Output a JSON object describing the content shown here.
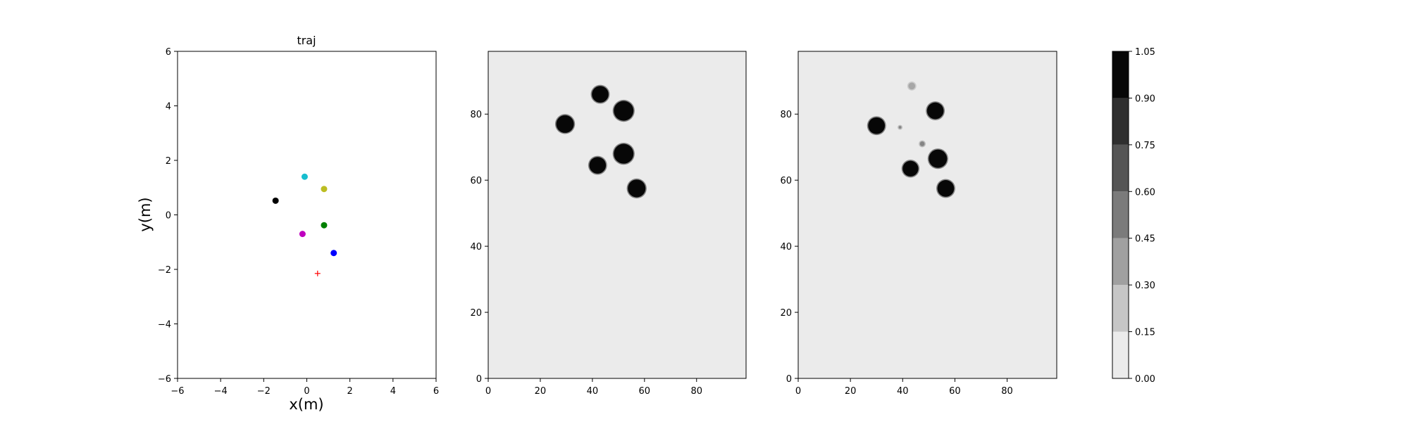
{
  "chart_data": [
    {
      "type": "scatter",
      "title": "traj",
      "xlabel": "x(m)",
      "ylabel": "y(m)",
      "xlim": [
        -6,
        6
      ],
      "ylim": [
        -6,
        6
      ],
      "xticks": [
        -6,
        -4,
        -2,
        0,
        2,
        4,
        6
      ],
      "yticks": [
        -6,
        -4,
        -2,
        0,
        2,
        4,
        6
      ],
      "grid": false,
      "points": [
        {
          "x": -0.1,
          "y": 1.4,
          "color": "#17becf",
          "marker": "dot"
        },
        {
          "x": 0.8,
          "y": 0.95,
          "color": "#bcbd22",
          "marker": "dot"
        },
        {
          "x": -1.45,
          "y": 0.52,
          "color": "#000000",
          "marker": "dot"
        },
        {
          "x": 0.8,
          "y": -0.38,
          "color": "#008000",
          "marker": "dot"
        },
        {
          "x": -0.2,
          "y": -0.7,
          "color": "#bf00bf",
          "marker": "dot"
        },
        {
          "x": 1.25,
          "y": -1.4,
          "color": "#0000ff",
          "marker": "dot"
        },
        {
          "x": 0.5,
          "y": -2.15,
          "color": "#ff0000",
          "marker": "plus"
        }
      ]
    },
    {
      "type": "heatmap",
      "xlim": [
        0,
        99
      ],
      "ylim": [
        0,
        99
      ],
      "xticks": [
        0,
        20,
        40,
        60,
        80
      ],
      "yticks": [
        0,
        20,
        40,
        60,
        80
      ],
      "background_level": 0.08,
      "blobs": [
        {
          "x": 43,
          "y": 86,
          "r": 3.2,
          "level": 1.0
        },
        {
          "x": 52,
          "y": 81,
          "r": 3.8,
          "level": 1.0
        },
        {
          "x": 29.5,
          "y": 77,
          "r": 3.4,
          "level": 1.0
        },
        {
          "x": 52,
          "y": 68,
          "r": 3.8,
          "level": 1.0
        },
        {
          "x": 42,
          "y": 64.5,
          "r": 3.2,
          "level": 1.0
        },
        {
          "x": 57,
          "y": 57.5,
          "r": 3.4,
          "level": 1.0
        }
      ]
    },
    {
      "type": "heatmap",
      "xlim": [
        0,
        99
      ],
      "ylim": [
        0,
        99
      ],
      "xticks": [
        0,
        20,
        40,
        60,
        80
      ],
      "yticks": [
        0,
        20,
        40,
        60,
        80
      ],
      "background_level": 0.08,
      "blobs": [
        {
          "x": 43.5,
          "y": 88.5,
          "r": 1.3,
          "level": 0.3
        },
        {
          "x": 52.5,
          "y": 81,
          "r": 3.2,
          "level": 1.0
        },
        {
          "x": 30,
          "y": 76.5,
          "r": 3.2,
          "level": 1.0
        },
        {
          "x": 47.5,
          "y": 71,
          "r": 0.9,
          "level": 0.45
        },
        {
          "x": 53.5,
          "y": 66.5,
          "r": 3.5,
          "level": 1.0
        },
        {
          "x": 43,
          "y": 63.5,
          "r": 3.0,
          "level": 1.0
        },
        {
          "x": 56.5,
          "y": 57.5,
          "r": 3.2,
          "level": 1.0
        },
        {
          "x": 39,
          "y": 76,
          "r": 0.5,
          "level": 0.45
        }
      ]
    }
  ],
  "colorbar": {
    "levels": [
      0.0,
      0.15,
      0.3,
      0.45,
      0.6,
      0.75,
      0.9,
      1.05
    ],
    "tick_labels": [
      "0.00",
      "0.15",
      "0.30",
      "0.45",
      "0.60",
      "0.75",
      "0.90",
      "1.05"
    ],
    "colors": [
      "#ebebeb",
      "#c6c6c6",
      "#a0a0a0",
      "#7b7b7b",
      "#555555",
      "#2f2f2f",
      "#070707"
    ]
  }
}
